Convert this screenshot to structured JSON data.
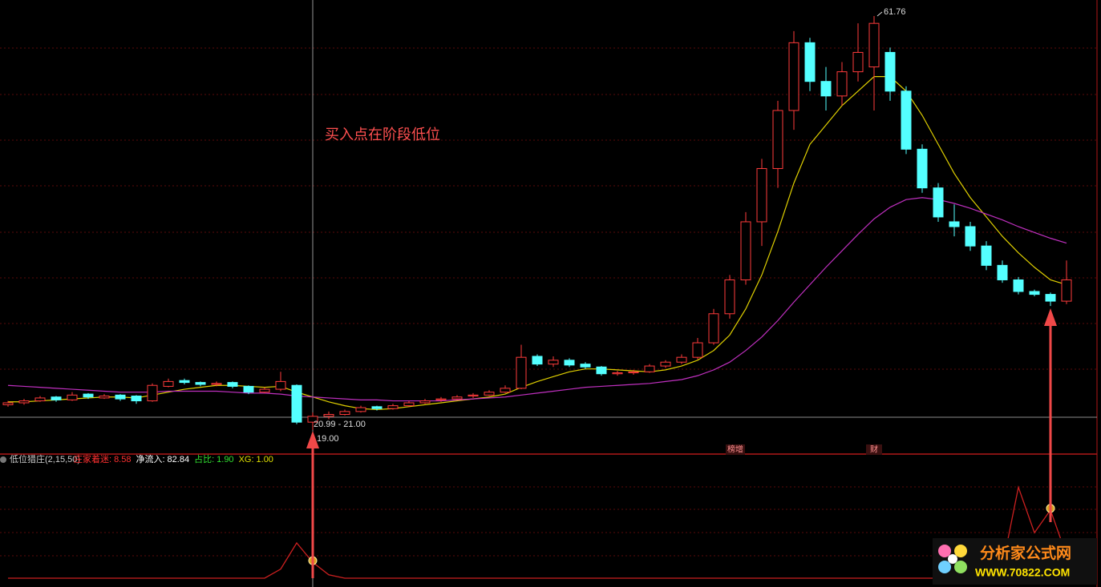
{
  "chart_data": {
    "type": "candlestick",
    "ylim": [
      17,
      63
    ],
    "up_color": "#ff3b3b",
    "down_color": "#54ffff",
    "candles": [
      [
        21.6,
        22.0,
        21.4,
        21.8
      ],
      [
        21.8,
        22.2,
        21.6,
        22.0
      ],
      [
        22.0,
        22.5,
        21.9,
        22.3
      ],
      [
        22.4,
        22.5,
        21.9,
        22.1
      ],
      [
        22.1,
        22.9,
        22.0,
        22.6
      ],
      [
        22.7,
        22.8,
        22.2,
        22.4
      ],
      [
        22.3,
        22.7,
        22.2,
        22.5
      ],
      [
        22.6,
        22.7,
        22.0,
        22.2
      ],
      [
        22.5,
        22.6,
        21.7,
        22.0
      ],
      [
        22.0,
        23.8,
        21.9,
        23.6
      ],
      [
        23.5,
        24.3,
        23.4,
        24.0
      ],
      [
        24.1,
        24.3,
        23.7,
        23.9
      ],
      [
        23.9,
        24.0,
        23.5,
        23.7
      ],
      [
        23.7,
        24.0,
        23.5,
        23.8
      ],
      [
        23.9,
        24.0,
        23.3,
        23.5
      ],
      [
        23.5,
        23.6,
        22.7,
        22.9
      ],
      [
        22.9,
        23.4,
        22.8,
        23.2
      ],
      [
        23.2,
        25.0,
        23.0,
        24.0
      ],
      [
        23.6,
        23.7,
        19.6,
        19.8
      ],
      [
        19.8,
        20.8,
        19.0,
        20.4
      ],
      [
        20.4,
        20.9,
        20.1,
        20.6
      ],
      [
        20.6,
        21.1,
        20.5,
        20.9
      ],
      [
        20.9,
        21.5,
        20.8,
        21.3
      ],
      [
        21.4,
        21.5,
        21.0,
        21.2
      ],
      [
        21.2,
        21.7,
        21.1,
        21.5
      ],
      [
        21.5,
        22.0,
        21.4,
        21.8
      ],
      [
        21.8,
        22.2,
        21.7,
        22.0
      ],
      [
        22.1,
        22.4,
        21.9,
        22.2
      ],
      [
        22.2,
        22.6,
        22.1,
        22.4
      ],
      [
        22.5,
        22.8,
        22.3,
        22.6
      ],
      [
        22.6,
        23.1,
        22.5,
        22.9
      ],
      [
        22.9,
        23.6,
        22.8,
        23.3
      ],
      [
        23.3,
        27.8,
        23.2,
        26.5
      ],
      [
        26.6,
        26.8,
        25.6,
        25.8
      ],
      [
        25.8,
        26.6,
        25.5,
        26.2
      ],
      [
        26.2,
        26.4,
        25.5,
        25.7
      ],
      [
        25.8,
        26.0,
        25.3,
        25.5
      ],
      [
        25.5,
        25.6,
        24.6,
        24.8
      ],
      [
        24.8,
        25.1,
        24.6,
        24.9
      ],
      [
        24.9,
        25.2,
        24.7,
        25.0
      ],
      [
        25.0,
        25.8,
        24.9,
        25.6
      ],
      [
        25.6,
        26.2,
        25.4,
        26.0
      ],
      [
        26.0,
        26.8,
        25.8,
        26.5
      ],
      [
        26.5,
        28.5,
        26.3,
        28.0
      ],
      [
        28.0,
        31.5,
        27.8,
        31.0
      ],
      [
        31.0,
        35.0,
        30.5,
        34.5
      ],
      [
        34.5,
        41.5,
        34.0,
        40.5
      ],
      [
        40.5,
        47.0,
        38.0,
        46.0
      ],
      [
        46.0,
        53.0,
        44.0,
        52.0
      ],
      [
        52.0,
        60.2,
        50.0,
        59.0
      ],
      [
        59.0,
        59.5,
        54.0,
        55.0
      ],
      [
        55.0,
        56.5,
        52.0,
        53.5
      ],
      [
        53.5,
        57.0,
        52.5,
        56.0
      ],
      [
        56.0,
        61.0,
        55.0,
        58.0
      ],
      [
        56.5,
        61.76,
        52.0,
        61.0
      ],
      [
        58.0,
        58.5,
        53.0,
        54.0
      ],
      [
        54.0,
        54.5,
        47.5,
        48.0
      ],
      [
        48.0,
        48.5,
        43.5,
        44.0
      ],
      [
        44.0,
        44.5,
        40.5,
        41.0
      ],
      [
        40.5,
        42.3,
        39.0,
        40.0
      ],
      [
        40.0,
        40.5,
        37.5,
        38.0
      ],
      [
        38.0,
        38.5,
        35.5,
        36.0
      ],
      [
        36.0,
        36.5,
        34.2,
        34.5
      ],
      [
        34.5,
        34.8,
        33.0,
        33.3
      ],
      [
        33.3,
        33.5,
        32.8,
        33.0
      ],
      [
        33.0,
        33.2,
        31.8,
        32.3
      ],
      [
        32.3,
        36.5,
        32.0,
        34.5
      ]
    ],
    "series": [
      {
        "color": "#e0d000",
        "values": [
          21.9,
          21.9,
          22.0,
          22.1,
          22.2,
          22.3,
          22.4,
          22.4,
          22.3,
          22.6,
          22.9,
          23.2,
          23.4,
          23.6,
          23.6,
          23.5,
          23.4,
          23.5,
          22.9,
          22.4,
          21.9,
          21.5,
          21.2,
          21.1,
          21.2,
          21.4,
          21.6,
          21.8,
          22.0,
          22.2,
          22.4,
          22.7,
          23.4,
          24.0,
          24.5,
          25.0,
          25.3,
          25.3,
          25.2,
          25.1,
          25.0,
          25.2,
          25.6,
          26.2,
          27.2,
          28.8,
          31.5,
          35.0,
          39.5,
          44.5,
          48.5,
          50.5,
          52.5,
          54.0,
          55.5,
          55.5,
          54.0,
          51.5,
          48.5,
          45.5,
          43.0,
          41.0,
          39.0,
          37.3,
          35.8,
          34.5,
          34.0
        ]
      },
      {
        "color": "#c030c0",
        "values": [
          23.6,
          23.5,
          23.4,
          23.3,
          23.2,
          23.1,
          23.0,
          22.9,
          22.9,
          22.9,
          23.0,
          23.0,
          23.0,
          23.0,
          22.9,
          22.8,
          22.8,
          22.7,
          22.5,
          22.4,
          22.3,
          22.2,
          22.1,
          22.1,
          22.0,
          22.0,
          22.0,
          22.0,
          22.1,
          22.2,
          22.3,
          22.4,
          22.6,
          22.8,
          23.0,
          23.2,
          23.4,
          23.5,
          23.6,
          23.7,
          23.8,
          24.0,
          24.2,
          24.6,
          25.2,
          26.0,
          27.2,
          28.6,
          30.3,
          32.2,
          34.0,
          35.8,
          37.5,
          39.2,
          40.8,
          42.0,
          42.8,
          43.0,
          42.8,
          42.4,
          41.9,
          41.3,
          40.7,
          40.0,
          39.4,
          38.8,
          38.3
        ]
      }
    ],
    "annotations": {
      "buy_note": "买入点在阶段低位",
      "high_label": 61.76,
      "range_label": "20.99 - 21.00",
      "low_label": {
        "value": 19,
        "label": "19.00"
      }
    },
    "badges": [
      "榜增",
      "财"
    ],
    "indicator": {
      "type": "line",
      "name": "低位猎庄(2,15,50)",
      "color": "#cc2020",
      "ylim": [
        0,
        100
      ],
      "values": [
        0,
        0,
        0,
        0,
        0,
        0,
        0,
        0,
        0,
        0,
        0,
        0,
        0,
        0,
        0,
        0,
        0,
        8,
        31,
        14,
        3,
        0,
        0,
        0,
        0,
        0,
        0,
        0,
        0,
        0,
        0,
        0,
        0,
        0,
        0,
        0,
        0,
        0,
        0,
        0,
        0,
        0,
        0,
        0,
        0,
        0,
        0,
        0,
        0,
        0,
        0,
        0,
        0,
        0,
        0,
        0,
        0,
        0,
        0,
        0,
        0,
        0,
        10,
        80,
        40,
        60,
        20
      ],
      "signal_index": [
        19,
        65
      ],
      "readouts": [
        {
          "name": "庄家着迷:",
          "value": 8.58,
          "color": "#ff3030"
        },
        {
          "name": "净流入:",
          "value": 82.84,
          "color": "#ffffff"
        },
        {
          "name": "占比:",
          "value": 1.9,
          "value_label": "1.90",
          "color": "#30e030"
        },
        {
          "name": "XG:",
          "value": 1,
          "value_label": "1.00",
          "color": "#e0e000"
        }
      ]
    }
  },
  "watermark": {
    "title": "分析家公式网",
    "url": "WWW.70822.COM"
  }
}
